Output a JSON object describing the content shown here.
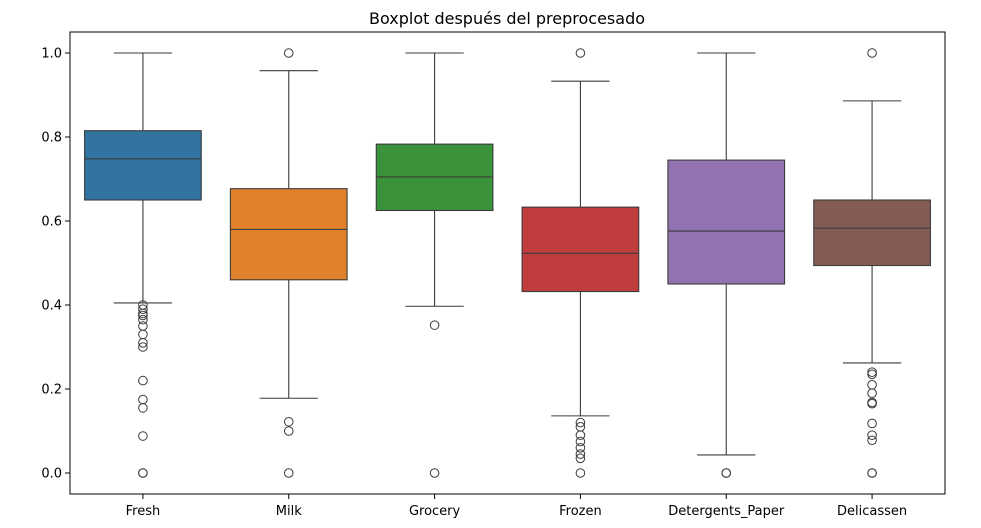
{
  "chart_data": {
    "type": "box",
    "title": "Boxplot después del preprocesado",
    "xlabel": "",
    "ylabel": "",
    "ylim": [
      -0.05,
      1.05
    ],
    "yticks": [
      0.0,
      0.2,
      0.4,
      0.6,
      0.8,
      1.0
    ],
    "ytick_labels": [
      "0.0",
      "0.2",
      "0.4",
      "0.6",
      "0.8",
      "1.0"
    ],
    "grid": false,
    "categories": [
      "Fresh",
      "Milk",
      "Grocery",
      "Frozen",
      "Detergents_Paper",
      "Delicassen"
    ],
    "colors": [
      "#3274a1",
      "#e1812c",
      "#3a923a",
      "#c03d3e",
      "#9372b2",
      "#845b53"
    ],
    "boxes": [
      {
        "name": "Fresh",
        "whisker_low": 0.405,
        "q1": 0.65,
        "median": 0.748,
        "q3": 0.815,
        "whisker_high": 1.0,
        "outliers": [
          0.4,
          0.39,
          0.38,
          0.375,
          0.365,
          0.35,
          0.33,
          0.31,
          0.3,
          0.22,
          0.175,
          0.155,
          0.088,
          0.0,
          0.0
        ]
      },
      {
        "name": "Milk",
        "whisker_low": 0.178,
        "q1": 0.46,
        "median": 0.58,
        "q3": 0.677,
        "whisker_high": 0.958,
        "outliers": [
          1.0,
          0.122,
          0.1,
          0.0
        ]
      },
      {
        "name": "Grocery",
        "whisker_low": 0.397,
        "q1": 0.625,
        "median": 0.705,
        "q3": 0.783,
        "whisker_high": 1.0,
        "outliers": [
          0.352,
          0.0
        ]
      },
      {
        "name": "Frozen",
        "whisker_low": 0.136,
        "q1": 0.432,
        "median": 0.523,
        "q3": 0.633,
        "whisker_high": 0.933,
        "outliers": [
          1.0,
          0.12,
          0.11,
          0.09,
          0.075,
          0.06,
          0.045,
          0.035,
          0.0
        ]
      },
      {
        "name": "Detergents_Paper",
        "whisker_low": 0.043,
        "q1": 0.45,
        "median": 0.576,
        "q3": 0.745,
        "whisker_high": 1.0,
        "outliers": [
          0.0,
          0.0
        ]
      },
      {
        "name": "Delicassen",
        "whisker_low": 0.262,
        "q1": 0.494,
        "median": 0.583,
        "q3": 0.65,
        "whisker_high": 0.886,
        "outliers": [
          1.0,
          0.24,
          0.235,
          0.21,
          0.19,
          0.168,
          0.165,
          0.118,
          0.09,
          0.078,
          0.0,
          0.0
        ]
      }
    ]
  }
}
